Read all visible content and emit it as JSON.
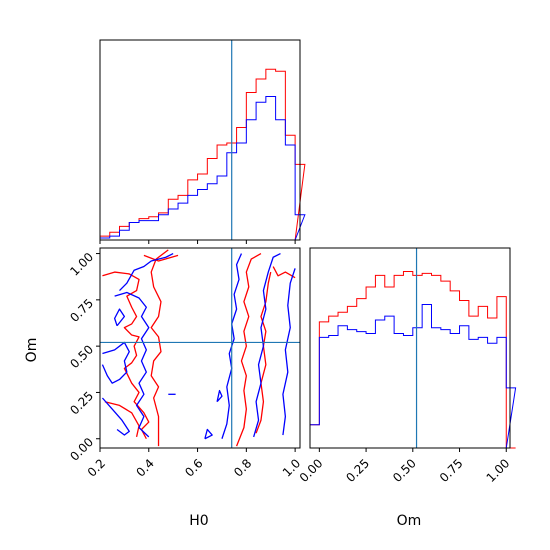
{
  "chart_data": {
    "type": "corner",
    "parameters": [
      "H0",
      "Om"
    ],
    "colors": {
      "red": "#ff0000",
      "blue": "#0000ff",
      "truth": "#1f77b4"
    },
    "truth": {
      "H0": 0.74,
      "Om": 0.52
    },
    "panels": [
      {
        "id": "H0-marginal",
        "type": "step-histogram",
        "xlim": [
          0.2,
          1.02
        ],
        "bin_edges": [
          0.2,
          0.24,
          0.28,
          0.32,
          0.36,
          0.4,
          0.44,
          0.48,
          0.52,
          0.56,
          0.6,
          0.64,
          0.68,
          0.72,
          0.76,
          0.8,
          0.84,
          0.88,
          0.92,
          0.96,
          1.0
        ],
        "series": [
          {
            "color": "red",
            "counts": [
              0.02,
              0.04,
              0.07,
              0.09,
              0.11,
              0.12,
              0.14,
              0.21,
              0.23,
              0.31,
              0.34,
              0.42,
              0.49,
              0.5,
              0.58,
              0.76,
              0.83,
              0.88,
              0.87,
              0.54,
              0.39
            ]
          },
          {
            "color": "blue",
            "counts": [
              0.01,
              0.02,
              0.05,
              0.09,
              0.1,
              0.1,
              0.13,
              0.16,
              0.19,
              0.23,
              0.26,
              0.29,
              0.33,
              0.45,
              0.5,
              0.62,
              0.71,
              0.74,
              0.62,
              0.49,
              0.13
            ]
          }
        ],
        "xticks": [
          0.2,
          0.4,
          0.6,
          0.8,
          1.0
        ]
      },
      {
        "id": "Om-marginal",
        "type": "step-histogram",
        "xlim": [
          -0.05,
          1.02
        ],
        "bin_edges": [
          -0.05,
          0.0,
          0.05,
          0.1,
          0.15,
          0.2,
          0.25,
          0.3,
          0.35,
          0.4,
          0.45,
          0.5,
          0.55,
          0.6,
          0.65,
          0.7,
          0.75,
          0.8,
          0.85,
          0.9,
          0.95,
          1.0
        ],
        "series": [
          {
            "color": "red",
            "counts": [
              0.12,
              0.65,
              0.68,
              0.7,
              0.73,
              0.77,
              0.83,
              0.89,
              0.83,
              0.89,
              0.91,
              0.89,
              0.9,
              0.89,
              0.86,
              0.81,
              0.76,
              0.68,
              0.73,
              0.67,
              0.78,
              0.0
            ]
          },
          {
            "color": "blue",
            "counts": [
              0.12,
              0.57,
              0.58,
              0.63,
              0.61,
              0.6,
              0.59,
              0.66,
              0.68,
              0.59,
              0.58,
              0.62,
              0.74,
              0.62,
              0.61,
              0.59,
              0.63,
              0.56,
              0.57,
              0.54,
              0.57,
              0.31
            ]
          }
        ],
        "xticks": [
          0.0,
          0.25,
          0.5,
          0.75,
          1.0
        ],
        "xtick_labels": [
          "0.00",
          "0.25",
          "0.50",
          "0.75",
          "1.00"
        ],
        "xlabel": "Om"
      },
      {
        "id": "H0-Om-joint",
        "type": "contour",
        "xlim": [
          0.2,
          1.02
        ],
        "ylim": [
          -0.05,
          1.03
        ],
        "xticks": [
          0.2,
          0.4,
          0.6,
          0.8,
          1.0
        ],
        "xtick_labels": [
          "0.2",
          "0.4",
          "0.6",
          "0.8",
          "1.0"
        ],
        "yticks": [
          0.0,
          0.25,
          0.5,
          0.75,
          1.0
        ],
        "ytick_labels": [
          "0.00",
          "0.25",
          "0.50",
          "0.75",
          "1.00"
        ],
        "xlabel": "H0",
        "ylabel": "Om",
        "contours": [
          {
            "color": "red",
            "points": [
              [
                0.21,
                0.88
              ],
              [
                0.26,
                0.9
              ],
              [
                0.32,
                0.89
              ],
              [
                0.36,
                0.86
              ],
              [
                0.35,
                0.8
              ],
              [
                0.31,
                0.77
              ],
              [
                0.33,
                0.71
              ],
              [
                0.35,
                0.66
              ],
              [
                0.33,
                0.62
              ],
              [
                0.3,
                0.6
              ],
              [
                0.33,
                0.56
              ],
              [
                0.36,
                0.55
              ],
              [
                0.34,
                0.5
              ],
              [
                0.35,
                0.45
              ],
              [
                0.33,
                0.41
              ],
              [
                0.3,
                0.38
              ],
              [
                0.33,
                0.3
              ],
              [
                0.36,
                0.25
              ],
              [
                0.34,
                0.2
              ],
              [
                0.38,
                0.14
              ],
              [
                0.4,
                0.09
              ],
              [
                0.37,
                0.05
              ],
              [
                0.39,
                0.0
              ]
            ]
          },
          {
            "color": "red",
            "points": [
              [
                0.22,
                0.2
              ],
              [
                0.28,
                0.18
              ],
              [
                0.33,
                0.14
              ],
              [
                0.36,
                0.07
              ],
              [
                0.35,
                0.01
              ]
            ]
          },
          {
            "color": "red",
            "points": [
              [
                0.44,
                -0.04
              ],
              [
                0.44,
                0.12
              ],
              [
                0.42,
                0.22
              ],
              [
                0.44,
                0.28
              ],
              [
                0.41,
                0.34
              ],
              [
                0.42,
                0.42
              ],
              [
                0.45,
                0.47
              ],
              [
                0.44,
                0.55
              ],
              [
                0.41,
                0.6
              ],
              [
                0.44,
                0.66
              ],
              [
                0.45,
                0.74
              ],
              [
                0.42,
                0.82
              ],
              [
                0.41,
                0.9
              ],
              [
                0.43,
                0.97
              ],
              [
                0.48,
                1.02
              ]
            ]
          },
          {
            "color": "red",
            "points": [
              [
                0.38,
                0.99
              ],
              [
                0.44,
                0.96
              ],
              [
                0.52,
                0.99
              ]
            ]
          },
          {
            "color": "red",
            "points": [
              [
                0.76,
                -0.04
              ],
              [
                0.79,
                0.06
              ],
              [
                0.8,
                0.16
              ],
              [
                0.79,
                0.26
              ],
              [
                0.8,
                0.34
              ],
              [
                0.78,
                0.42
              ],
              [
                0.8,
                0.5
              ],
              [
                0.79,
                0.58
              ],
              [
                0.81,
                0.66
              ],
              [
                0.79,
                0.74
              ],
              [
                0.81,
                0.82
              ],
              [
                0.8,
                0.9
              ],
              [
                0.82,
                0.97
              ],
              [
                0.86,
                1.0
              ]
            ]
          },
          {
            "color": "red",
            "points": [
              [
                0.84,
                0.03
              ],
              [
                0.86,
                0.1
              ],
              [
                0.87,
                0.2
              ],
              [
                0.86,
                0.3
              ],
              [
                0.88,
                0.4
              ],
              [
                0.87,
                0.5
              ],
              [
                0.88,
                0.58
              ],
              [
                0.86,
                0.66
              ],
              [
                0.88,
                0.74
              ],
              [
                0.89,
                0.84
              ],
              [
                0.9,
                0.9
              ]
            ]
          },
          {
            "color": "red",
            "points": [
              [
                0.91,
                0.93
              ],
              [
                0.93,
                0.88
              ],
              [
                0.96,
                0.9
              ],
              [
                1.0,
                0.87
              ]
            ]
          },
          {
            "color": "blue",
            "points": [
              [
                0.27,
                0.61
              ],
              [
                0.3,
                0.66
              ],
              [
                0.28,
                0.7
              ],
              [
                0.26,
                0.65
              ],
              [
                0.27,
                0.61
              ]
            ]
          },
          {
            "color": "blue",
            "points": [
              [
                0.21,
                0.46
              ],
              [
                0.26,
                0.48
              ],
              [
                0.3,
                0.52
              ],
              [
                0.32,
                0.47
              ],
              [
                0.3,
                0.42
              ],
              [
                0.31,
                0.36
              ],
              [
                0.28,
                0.32
              ],
              [
                0.25,
                0.3
              ],
              [
                0.23,
                0.34
              ],
              [
                0.21,
                0.4
              ]
            ]
          },
          {
            "color": "blue",
            "points": [
              [
                0.28,
                0.8
              ],
              [
                0.31,
                0.84
              ],
              [
                0.34,
                0.91
              ],
              [
                0.38,
                0.93
              ],
              [
                0.41,
                0.96
              ],
              [
                0.47,
                0.98
              ],
              [
                0.5,
                1.0
              ]
            ]
          },
          {
            "color": "blue",
            "points": [
              [
                0.26,
                0.77
              ],
              [
                0.31,
                0.79
              ],
              [
                0.36,
                0.76
              ],
              [
                0.39,
                0.71
              ],
              [
                0.37,
                0.66
              ],
              [
                0.4,
                0.6
              ],
              [
                0.37,
                0.54
              ],
              [
                0.39,
                0.48
              ],
              [
                0.37,
                0.42
              ],
              [
                0.39,
                0.36
              ],
              [
                0.36,
                0.3
              ],
              [
                0.38,
                0.24
              ],
              [
                0.35,
                0.18
              ],
              [
                0.38,
                0.12
              ],
              [
                0.36,
                0.06
              ],
              [
                0.4,
                0.01
              ]
            ]
          },
          {
            "color": "blue",
            "points": [
              [
                0.21,
                0.22
              ],
              [
                0.25,
                0.16
              ],
              [
                0.29,
                0.1
              ],
              [
                0.32,
                0.04
              ],
              [
                0.3,
                0.02
              ],
              [
                0.27,
                0.05
              ]
            ]
          },
          {
            "color": "blue",
            "points": [
              [
                0.7,
                0.0
              ],
              [
                0.72,
                0.08
              ],
              [
                0.73,
                0.18
              ],
              [
                0.72,
                0.28
              ],
              [
                0.74,
                0.38
              ],
              [
                0.73,
                0.46
              ],
              [
                0.75,
                0.54
              ],
              [
                0.74,
                0.62
              ],
              [
                0.76,
                0.7
              ],
              [
                0.75,
                0.78
              ],
              [
                0.77,
                0.86
              ],
              [
                0.76,
                0.94
              ],
              [
                0.78,
                1.0
              ]
            ]
          },
          {
            "color": "blue",
            "points": [
              [
                0.83,
                0.01
              ],
              [
                0.85,
                0.1
              ],
              [
                0.84,
                0.2
              ],
              [
                0.86,
                0.3
              ],
              [
                0.85,
                0.4
              ],
              [
                0.87,
                0.5
              ],
              [
                0.86,
                0.6
              ],
              [
                0.88,
                0.7
              ],
              [
                0.87,
                0.8
              ],
              [
                0.89,
                0.9
              ],
              [
                0.91,
                0.98
              ],
              [
                0.94,
                1.0
              ]
            ]
          },
          {
            "color": "blue",
            "points": [
              [
                0.95,
                0.02
              ],
              [
                0.96,
                0.12
              ],
              [
                0.95,
                0.24
              ],
              [
                0.97,
                0.36
              ],
              [
                0.96,
                0.48
              ],
              [
                0.98,
                0.6
              ],
              [
                0.97,
                0.72
              ],
              [
                0.98,
                0.84
              ],
              [
                1.0,
                0.92
              ]
            ]
          },
          {
            "color": "blue",
            "points": [
              [
                0.48,
                0.24
              ],
              [
                0.51,
                0.24
              ]
            ]
          },
          {
            "color": "blue",
            "points": [
              [
                0.63,
                0.0
              ],
              [
                0.66,
                0.02
              ],
              [
                0.64,
                0.05
              ],
              [
                0.63,
                0.0
              ]
            ]
          },
          {
            "color": "blue",
            "points": [
              [
                0.68,
                0.2
              ],
              [
                0.7,
                0.23
              ],
              [
                0.69,
                0.26
              ],
              [
                0.68,
                0.2
              ]
            ]
          }
        ]
      }
    ]
  }
}
